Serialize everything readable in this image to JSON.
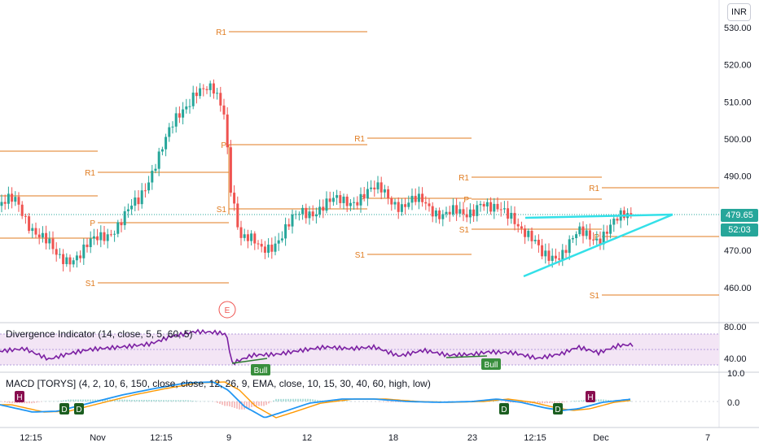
{
  "currency": "INR",
  "price_axis": {
    "ticks": [
      "530.00",
      "520.00",
      "510.00",
      "500.00",
      "490.00",
      "480.00",
      "470.00",
      "460.00"
    ],
    "last_price": "479.65",
    "countdown": "52:03"
  },
  "time_axis": [
    "12:15",
    "Nov",
    "12:15",
    "9",
    "12",
    "18",
    "23",
    "12:15",
    "Dec",
    "7"
  ],
  "pivot_labels": {
    "p": "P",
    "r1": "R1",
    "s1": "S1"
  },
  "event_marker": "E",
  "divergence": {
    "title": "Divergence Indicator (14, close, 5, 5, 60, 5)",
    "ticks": [
      "80.00",
      "40.00"
    ],
    "bull_label": "Bull"
  },
  "macd": {
    "title": "MACD [TORYS] (4, 2, 10, 6, 150, close, close, 12, 26, 9, EMA, close, 10, 15, 30, 40, 60, high, low)",
    "ticks": [
      "10.0",
      "0.0"
    ],
    "signal_labels": {
      "d": "D",
      "h": "H"
    }
  },
  "colors": {
    "up": "#26a69a",
    "down": "#ef5350",
    "pivot": "#e07b1f",
    "triangle": "#33e0e8",
    "rsi": "#7b1fa2",
    "rsi_band": "#f3e5f5",
    "macd_line": "#2196f3",
    "signal_line": "#ff9800",
    "last_price_tag": "#26a69a",
    "countdown_tag": "#26a69a"
  }
}
